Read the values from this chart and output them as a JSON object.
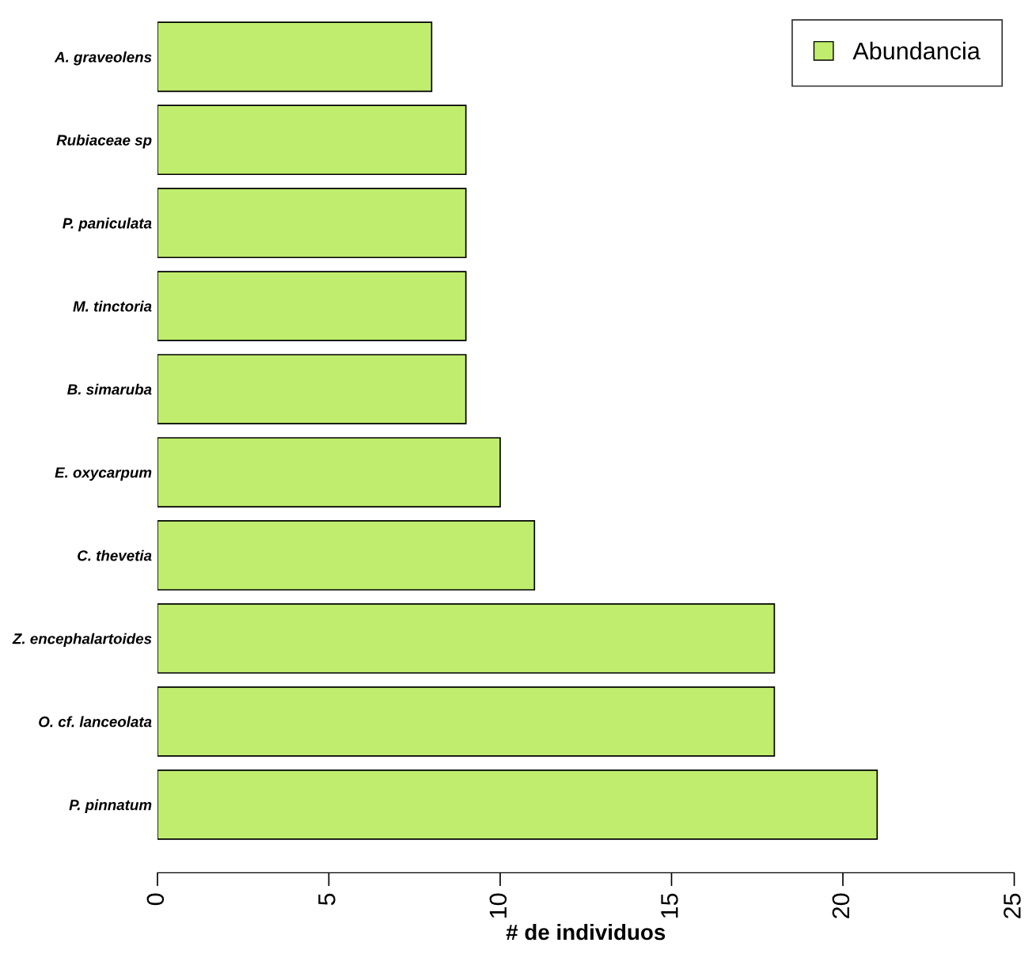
{
  "chart_data": {
    "type": "bar",
    "orientation": "horizontal",
    "xlabel": "# de individuos",
    "categories": [
      "A. graveolens",
      "Rubiaceae sp",
      "P. paniculata",
      "M. tinctoria",
      "B. simaruba",
      "E. oxycarpum",
      "C. thevetia",
      "Z. encephalartoides",
      "O. cf. lanceolata",
      "P. pinnatum"
    ],
    "series": [
      {
        "name": "Abundancia",
        "color": "#c0ed6d",
        "values": [
          8,
          9,
          9,
          9,
          9,
          10,
          11,
          18,
          18,
          21
        ]
      }
    ],
    "xlim": [
      0,
      25
    ],
    "xticks": [
      0,
      5,
      10,
      15,
      20,
      25
    ],
    "grid": false,
    "legend": "top right"
  }
}
